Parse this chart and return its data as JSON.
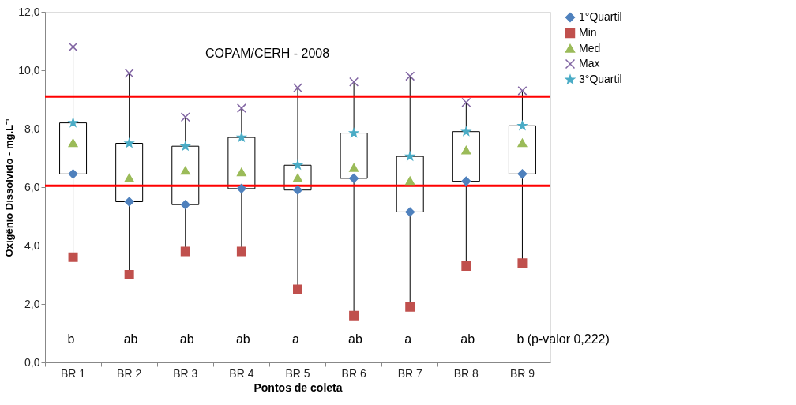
{
  "chart_data": {
    "type": "box",
    "xlabel": "Pontos de coleta",
    "ylabel": "Oxigênio Dissolvido - mg.L⁻¹",
    "categories": [
      "BR 1",
      "BR 2",
      "BR 3",
      "BR 4",
      "BR 5",
      "BR 6",
      "BR 7",
      "BR 8",
      "BR 9"
    ],
    "boxes": [
      {
        "low": 3.6,
        "q1": 6.45,
        "q3": 8.2,
        "high": 10.8
      },
      {
        "low": 3.0,
        "q1": 5.5,
        "q3": 7.5,
        "high": 9.9
      },
      {
        "low": 3.8,
        "q1": 5.4,
        "q3": 7.4,
        "high": 8.4
      },
      {
        "low": 3.8,
        "q1": 5.95,
        "q3": 7.7,
        "high": 8.7
      },
      {
        "low": 2.5,
        "q1": 5.9,
        "q3": 6.75,
        "high": 9.4
      },
      {
        "low": 1.6,
        "q1": 6.3,
        "q3": 7.85,
        "high": 9.6
      },
      {
        "low": 1.9,
        "q1": 5.15,
        "q3": 7.05,
        "high": 9.8
      },
      {
        "low": 3.3,
        "q1": 6.2,
        "q3": 7.9,
        "high": 8.9
      },
      {
        "low": 3.4,
        "q1": 6.45,
        "q3": 8.1,
        "high": 9.3
      }
    ],
    "series": [
      {
        "name": "1°Quartil",
        "type": "scatter",
        "color": "#4f81bd",
        "marker": "diamond",
        "values": [
          6.45,
          5.5,
          5.4,
          5.95,
          5.9,
          6.3,
          5.15,
          6.2,
          6.45
        ]
      },
      {
        "name": "Min",
        "type": "scatter",
        "color": "#c0504d",
        "marker": "square",
        "values": [
          3.6,
          3.0,
          3.8,
          3.8,
          2.5,
          1.6,
          1.9,
          3.3,
          3.4
        ]
      },
      {
        "name": "Med",
        "type": "scatter",
        "color": "#9bbb59",
        "marker": "triangle",
        "values": [
          7.5,
          6.3,
          6.55,
          6.5,
          6.3,
          6.65,
          6.2,
          7.25,
          7.5
        ]
      },
      {
        "name": "Max",
        "type": "scatter",
        "color": "#8064a2",
        "marker": "cross",
        "values": [
          10.8,
          9.9,
          8.4,
          8.7,
          9.4,
          9.6,
          9.8,
          8.9,
          9.3
        ]
      },
      {
        "name": "3°Quartil",
        "type": "scatter",
        "color": "#4bacc6",
        "marker": "star",
        "values": [
          8.2,
          7.5,
          7.4,
          7.7,
          6.75,
          7.85,
          7.05,
          7.9,
          8.1
        ]
      }
    ],
    "ylim": [
      0,
      12
    ],
    "yticks": [
      {
        "value": 0,
        "label": "0,0"
      },
      {
        "value": 2,
        "label": "2,0"
      },
      {
        "value": 4,
        "label": "4,0"
      },
      {
        "value": 6,
        "label": "6,0"
      },
      {
        "value": 8,
        "label": "8,0"
      },
      {
        "value": 10,
        "label": "10,0"
      },
      {
        "value": 12,
        "label": "12,0"
      }
    ],
    "ref_lines": [
      {
        "axis": "y",
        "value": 9.1,
        "color": "#ff0000"
      },
      {
        "axis": "y",
        "value": 6.05,
        "color": "#ff0000"
      }
    ],
    "annotations": [
      "COPAM/CERH - 2008",
      "b",
      "ab",
      "ab",
      "ab",
      "a",
      "ab",
      "a",
      "ab",
      "b (p-valor 0,222)"
    ],
    "legend": "right",
    "grid": false
  }
}
